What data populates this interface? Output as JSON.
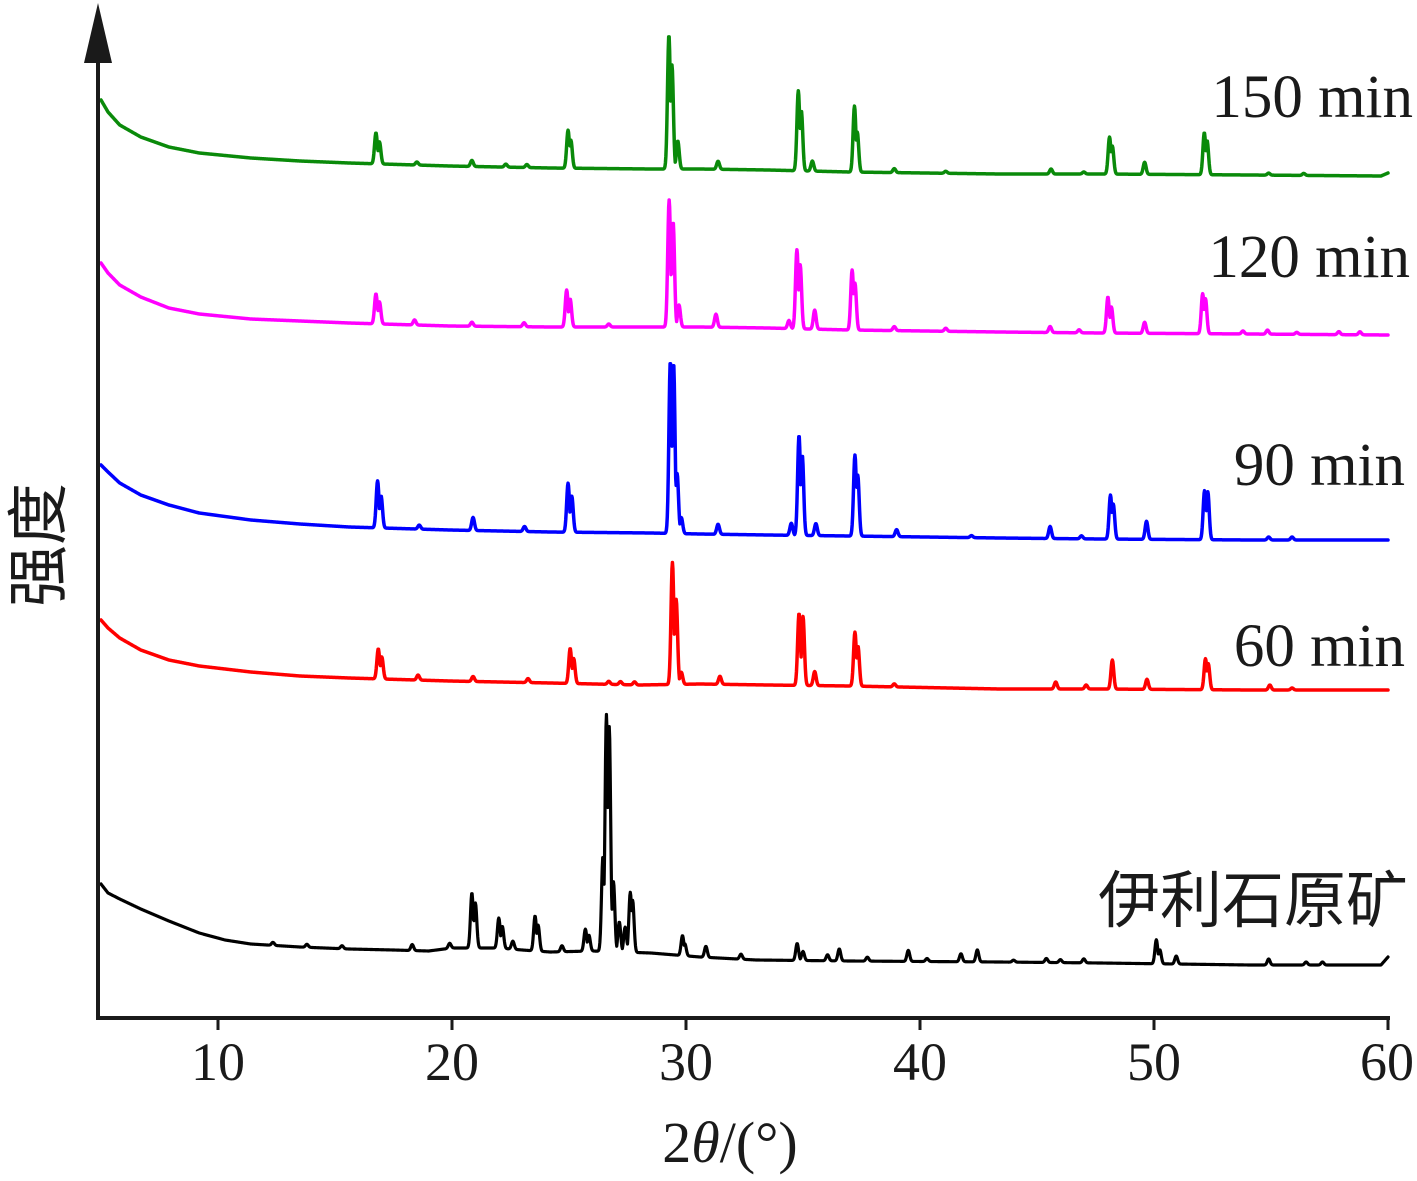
{
  "chart_data": {
    "type": "line",
    "xlabel": "2θ/(°)",
    "ylabel": "强度",
    "xlim": [
      5,
      60
    ],
    "xticks": [
      10,
      20,
      30,
      40,
      50,
      60
    ],
    "yticks": [],
    "grid": false,
    "legend": "none",
    "stacked_offset": true,
    "series": [
      {
        "name": "150 min",
        "color": "#0a8a0a",
        "background": [
          [
            5.0,
            76
          ],
          [
            5.3,
            64
          ],
          [
            5.8,
            51
          ],
          [
            6.7,
            39
          ],
          [
            7.9,
            29
          ],
          [
            9.2,
            23
          ],
          [
            11.4,
            18
          ],
          [
            13.5,
            15
          ],
          [
            15.6,
            13
          ],
          [
            19.9,
            10
          ],
          [
            24.2,
            8
          ],
          [
            28.5,
            7
          ],
          [
            30.6,
            7
          ],
          [
            33.5,
            6
          ],
          [
            37.0,
            4
          ],
          [
            43.4,
            2
          ],
          [
            47.7,
            2
          ],
          [
            54.1,
            1
          ],
          [
            59.7,
            0
          ],
          [
            60.0,
            3
          ]
        ],
        "peaks": [
          [
            16.75,
            31
          ],
          [
            16.9,
            22
          ],
          [
            18.5,
            3
          ],
          [
            20.85,
            6
          ],
          [
            22.3,
            3
          ],
          [
            23.2,
            3
          ],
          [
            24.96,
            38
          ],
          [
            25.08,
            28
          ],
          [
            29.27,
            134
          ],
          [
            29.4,
            104
          ],
          [
            29.65,
            28
          ],
          [
            31.37,
            8
          ],
          [
            34.8,
            80
          ],
          [
            34.93,
            60
          ],
          [
            35.4,
            10
          ],
          [
            37.2,
            66
          ],
          [
            37.32,
            40
          ],
          [
            38.9,
            4
          ],
          [
            41.1,
            2
          ],
          [
            45.6,
            5
          ],
          [
            47.0,
            2
          ],
          [
            48.1,
            37
          ],
          [
            48.22,
            28
          ],
          [
            49.6,
            12
          ],
          [
            52.15,
            42
          ],
          [
            52.27,
            34
          ],
          [
            54.9,
            2
          ],
          [
            56.4,
            2
          ]
        ]
      },
      {
        "name": "120 min",
        "color": "#ff00ff",
        "background": [
          [
            5.0,
            72
          ],
          [
            5.3,
            62
          ],
          [
            5.8,
            50
          ],
          [
            6.7,
            38
          ],
          [
            7.9,
            27
          ],
          [
            9.2,
            21
          ],
          [
            11.4,
            16
          ],
          [
            13.5,
            14
          ],
          [
            15.6,
            12
          ],
          [
            19.9,
            9
          ],
          [
            24.2,
            8
          ],
          [
            28.5,
            8
          ],
          [
            30.6,
            8
          ],
          [
            33.5,
            7
          ],
          [
            37.0,
            5
          ],
          [
            43.4,
            3
          ],
          [
            47.7,
            2
          ],
          [
            54.1,
            1
          ],
          [
            60.0,
            0
          ]
        ],
        "peaks": [
          [
            16.75,
            30
          ],
          [
            16.9,
            22
          ],
          [
            18.4,
            5
          ],
          [
            20.85,
            4
          ],
          [
            23.08,
            4
          ],
          [
            24.9,
            37
          ],
          [
            25.05,
            28
          ],
          [
            26.7,
            3
          ],
          [
            29.28,
            127
          ],
          [
            29.45,
            105
          ],
          [
            29.7,
            22
          ],
          [
            31.28,
            13
          ],
          [
            34.4,
            8
          ],
          [
            34.74,
            79
          ],
          [
            34.88,
            64
          ],
          [
            35.5,
            19
          ],
          [
            37.1,
            60
          ],
          [
            37.22,
            47
          ],
          [
            38.9,
            4
          ],
          [
            41.1,
            3
          ],
          [
            45.56,
            6
          ],
          [
            46.8,
            3
          ],
          [
            48.03,
            36
          ],
          [
            48.18,
            26
          ],
          [
            49.6,
            11
          ],
          [
            52.08,
            40
          ],
          [
            52.2,
            35
          ],
          [
            53.8,
            3
          ],
          [
            54.85,
            4
          ],
          [
            56.1,
            2
          ],
          [
            57.9,
            3
          ],
          [
            58.8,
            3
          ]
        ]
      },
      {
        "name": "90 min",
        "color": "#0000ff",
        "background": [
          [
            5.0,
            75
          ],
          [
            5.3,
            68
          ],
          [
            5.8,
            57
          ],
          [
            6.7,
            45
          ],
          [
            7.9,
            35
          ],
          [
            9.2,
            27
          ],
          [
            11.4,
            20
          ],
          [
            13.5,
            16
          ],
          [
            15.6,
            13
          ],
          [
            19.9,
            10
          ],
          [
            24.2,
            8
          ],
          [
            28.5,
            7
          ],
          [
            30.6,
            6
          ],
          [
            33.5,
            5
          ],
          [
            37.0,
            4
          ],
          [
            43.4,
            2
          ],
          [
            47.7,
            1
          ],
          [
            54.1,
            0
          ],
          [
            60.0,
            0
          ]
        ],
        "peaks": [
          [
            16.82,
            47
          ],
          [
            16.97,
            32
          ],
          [
            18.6,
            4
          ],
          [
            20.9,
            13
          ],
          [
            23.1,
            5
          ],
          [
            24.96,
            49
          ],
          [
            25.12,
            36
          ],
          [
            29.33,
            172
          ],
          [
            29.47,
            170
          ],
          [
            29.62,
            60
          ],
          [
            29.8,
            16
          ],
          [
            31.37,
            10
          ],
          [
            34.5,
            12
          ],
          [
            34.83,
            100
          ],
          [
            34.97,
            80
          ],
          [
            35.55,
            12
          ],
          [
            37.22,
            81
          ],
          [
            37.34,
            61
          ],
          [
            39.0,
            7
          ],
          [
            42.2,
            2
          ],
          [
            45.56,
            12
          ],
          [
            46.9,
            3
          ],
          [
            48.14,
            44
          ],
          [
            48.26,
            35
          ],
          [
            49.68,
            18
          ],
          [
            52.16,
            49
          ],
          [
            52.3,
            48
          ],
          [
            54.9,
            3
          ],
          [
            55.9,
            3
          ]
        ]
      },
      {
        "name": "60 min",
        "color": "#ff0000",
        "background": [
          [
            5.0,
            70
          ],
          [
            5.3,
            62
          ],
          [
            5.8,
            52
          ],
          [
            6.7,
            40
          ],
          [
            7.9,
            30
          ],
          [
            9.2,
            24
          ],
          [
            11.4,
            18
          ],
          [
            13.5,
            14
          ],
          [
            15.6,
            12
          ],
          [
            19.9,
            9
          ],
          [
            24.2,
            7
          ],
          [
            28.0,
            5
          ],
          [
            30.6,
            6
          ],
          [
            33.5,
            5
          ],
          [
            37.0,
            4
          ],
          [
            43.4,
            1
          ],
          [
            47.7,
            1
          ],
          [
            54.1,
            0
          ],
          [
            60.0,
            0
          ]
        ],
        "peaks": [
          [
            16.85,
            30
          ],
          [
            17.0,
            22
          ],
          [
            18.55,
            5
          ],
          [
            20.9,
            5
          ],
          [
            23.25,
            4
          ],
          [
            25.05,
            35
          ],
          [
            25.2,
            25
          ],
          [
            26.7,
            3
          ],
          [
            27.2,
            3
          ],
          [
            27.8,
            3
          ],
          [
            29.42,
            122
          ],
          [
            29.58,
            85
          ],
          [
            29.8,
            12
          ],
          [
            31.45,
            8
          ],
          [
            34.83,
            72
          ],
          [
            35.0,
            69
          ],
          [
            35.5,
            14
          ],
          [
            37.22,
            54
          ],
          [
            37.35,
            40
          ],
          [
            38.9,
            3
          ],
          [
            45.8,
            7
          ],
          [
            47.1,
            4
          ],
          [
            48.22,
            29
          ],
          [
            49.7,
            10
          ],
          [
            52.2,
            31
          ],
          [
            52.32,
            26
          ],
          [
            54.95,
            5
          ],
          [
            55.9,
            2
          ]
        ]
      },
      {
        "name": "伊利石原矿",
        "color": "#000000",
        "background": [
          [
            5.0,
            81
          ],
          [
            5.3,
            72
          ],
          [
            5.8,
            66
          ],
          [
            6.7,
            56
          ],
          [
            7.9,
            44
          ],
          [
            9.2,
            32
          ],
          [
            10.3,
            25
          ],
          [
            11.4,
            21
          ],
          [
            13.5,
            18
          ],
          [
            15.6,
            16
          ],
          [
            17.5,
            15
          ],
          [
            19.0,
            14
          ],
          [
            20.0,
            17
          ],
          [
            22.0,
            17
          ],
          [
            23.0,
            15
          ],
          [
            24.2,
            13
          ],
          [
            26.0,
            14
          ],
          [
            28.5,
            12
          ],
          [
            30.6,
            8
          ],
          [
            33.0,
            5
          ],
          [
            37.0,
            4
          ],
          [
            43.4,
            3
          ],
          [
            47.7,
            2
          ],
          [
            54.1,
            0
          ],
          [
            59.7,
            0
          ],
          [
            60.0,
            8
          ]
        ],
        "peaks": [
          [
            12.35,
            3
          ],
          [
            13.8,
            3
          ],
          [
            15.3,
            3
          ],
          [
            18.3,
            6
          ],
          [
            19.9,
            5
          ],
          [
            20.85,
            55
          ],
          [
            21.0,
            45
          ],
          [
            22.0,
            30
          ],
          [
            22.15,
            22
          ],
          [
            22.6,
            8
          ],
          [
            23.55,
            35
          ],
          [
            23.68,
            26
          ],
          [
            24.7,
            6
          ],
          [
            25.7,
            22
          ],
          [
            25.85,
            16
          ],
          [
            26.45,
            95
          ],
          [
            26.6,
            237
          ],
          [
            26.72,
            225
          ],
          [
            26.9,
            70
          ],
          [
            27.15,
            30
          ],
          [
            27.4,
            25
          ],
          [
            27.62,
            60
          ],
          [
            27.72,
            52
          ],
          [
            29.85,
            20
          ],
          [
            29.95,
            12
          ],
          [
            30.85,
            11
          ],
          [
            32.35,
            5
          ],
          [
            34.75,
            17
          ],
          [
            35.0,
            9
          ],
          [
            36.05,
            6
          ],
          [
            36.55,
            12
          ],
          [
            37.75,
            4
          ],
          [
            39.5,
            11
          ],
          [
            40.3,
            3
          ],
          [
            41.75,
            8
          ],
          [
            42.45,
            12
          ],
          [
            44.0,
            2
          ],
          [
            45.4,
            4
          ],
          [
            46.0,
            3
          ],
          [
            47.0,
            4
          ],
          [
            50.1,
            24
          ],
          [
            50.25,
            14
          ],
          [
            50.95,
            8
          ],
          [
            54.9,
            6
          ],
          [
            56.5,
            3
          ],
          [
            57.2,
            3
          ]
        ]
      }
    ]
  }
}
